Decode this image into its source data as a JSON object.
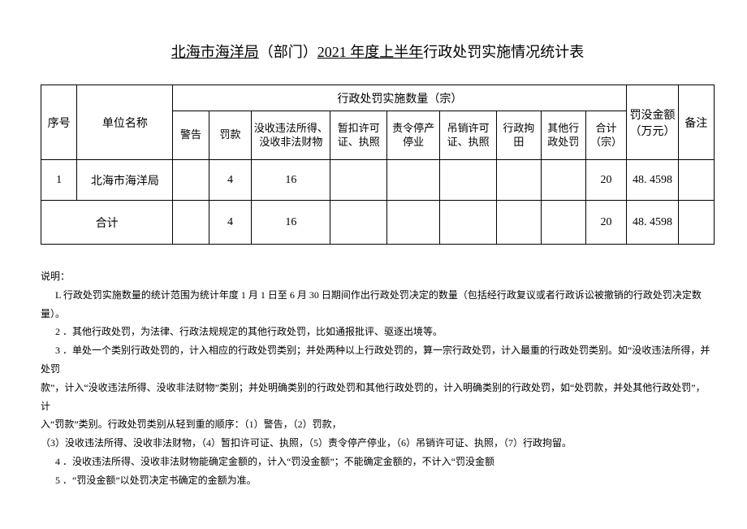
{
  "title": {
    "part1": "北海市海洋局",
    "part2": "（部门）",
    "part3": "2021 年度上半年",
    "part4": "行政处罚实施情况统计表"
  },
  "table": {
    "headers": {
      "seq": "序号",
      "unit": "单位名称",
      "group": "行政处罚实施数量（宗）",
      "amount": "罚没金额（万元）",
      "remark": "备注",
      "warn": "警告",
      "fine": "罚款",
      "confiscate": "没收违法所得、没收非法财物",
      "suspend": "暂扣许可证、执照",
      "order": "责令停产停业",
      "revoke": "吊销许可证、执照",
      "detain": "行政拘田",
      "other": "其他行政处罚",
      "total": "合计（宗）"
    },
    "row1": {
      "seq": "1",
      "unit": "北海市海洋局",
      "warn": "",
      "fine": "4",
      "confiscate": "16",
      "suspend": "",
      "order": "",
      "revoke": "",
      "detain": "",
      "other": "",
      "total": "20",
      "amount": "48. 4598",
      "remark": ""
    },
    "rowTotal": {
      "label": "合计",
      "warn": "",
      "fine": "4",
      "confiscate": "16",
      "suspend": "",
      "order": "",
      "revoke": "",
      "detain": "",
      "other": "",
      "total": "20",
      "amount": "48. 4598",
      "remark": ""
    }
  },
  "notes": {
    "label": "说明：",
    "n1": "L 行政处罚实施数量的统计范围为统计年度 1 月 1 日至 6 月 30 日期间作出行政处罚决定的数量（包括经行政复议或者行政诉讼被撤销的行政处罚决定数量）。",
    "n2": "2 ．其他行政处罚，为法律、行政法规规定的其他行政处罚，比如通报批评、驱逐出境等。",
    "n3a": "3 ．单处一个类别行政处罚的，计入相应的行政处罚类别；并处两种以上行政处罚的，算一宗行政处罚，计入最重的行政处罚类别。如“没收违法所得，并处罚",
    "n3b": "款”，计入“没收违法所得、没收非法财物”类别；并处明确类别的行政处罚和其他行政处罚的，计入明确类别的行政处罚，如“处罚款，并处其他行政处罚”，计",
    "n3c": "入“罚款”类别。行政处罚类别从轻到重的顺序：（1）警告，（2）罚款，",
    "n3d": "（3）没收违法所得、没收非法财物，（4）暂扣许可证、执照，（5）责令停产停业，（6）吊销许可证、执照，（7）行政拘留。",
    "n4": "4 ．没收违法所得、没收非法财物能确定金额的，计入“罚没金额”；不能确定金额的，不计入“罚没金额",
    "n5": "5 ．“罚没金额”以处罚决定书确定的金额为准。"
  }
}
